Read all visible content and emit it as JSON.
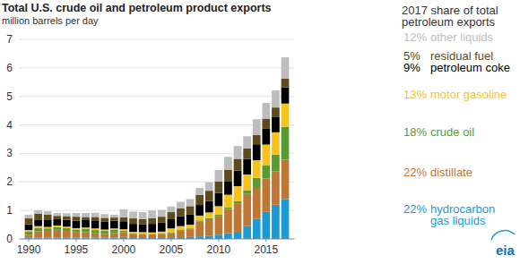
{
  "chart_data": {
    "type": "bar",
    "stacked": true,
    "grid": true,
    "title": "Total U.S. crude oil and petroleum product exports",
    "subtitle": "million barrels per day",
    "legend_title": "2017 share of total petroleum exports",
    "logo": "eia",
    "x": [
      1990,
      1991,
      1992,
      1993,
      1994,
      1995,
      1996,
      1997,
      1998,
      1999,
      2000,
      2001,
      2002,
      2003,
      2004,
      2005,
      2006,
      2007,
      2008,
      2009,
      2010,
      2011,
      2012,
      2013,
      2014,
      2015,
      2016,
      2017
    ],
    "xlim": [
      1989,
      2018
    ],
    "xticks": [
      1990,
      1995,
      2000,
      2005,
      2010,
      2015
    ],
    "ylim": [
      0,
      7
    ],
    "yticks": [
      0,
      1,
      2,
      3,
      4,
      5,
      6,
      7
    ],
    "series": [
      {
        "name": "hydrocarbon gas liquids",
        "share": "22%",
        "color": "#1c9ad6",
        "values": [
          0.04,
          0.05,
          0.05,
          0.05,
          0.05,
          0.05,
          0.05,
          0.05,
          0.05,
          0.05,
          0.07,
          0.06,
          0.06,
          0.06,
          0.06,
          0.06,
          0.06,
          0.07,
          0.09,
          0.1,
          0.15,
          0.2,
          0.25,
          0.45,
          0.7,
          0.95,
          1.2,
          1.4
        ]
      },
      {
        "name": "distillate",
        "share": "22%",
        "color": "#bf7632",
        "values": [
          0.11,
          0.22,
          0.23,
          0.27,
          0.23,
          0.18,
          0.19,
          0.15,
          0.12,
          0.16,
          0.17,
          0.12,
          0.11,
          0.11,
          0.11,
          0.14,
          0.22,
          0.27,
          0.53,
          0.59,
          0.66,
          0.85,
          1.0,
          1.13,
          1.09,
          1.17,
          1.17,
          1.38
        ]
      },
      {
        "name": "crude oil",
        "share": "18%",
        "color": "#5a9a32",
        "values": [
          0.11,
          0.12,
          0.09,
          0.1,
          0.1,
          0.1,
          0.11,
          0.11,
          0.11,
          0.12,
          0.05,
          0.02,
          0.01,
          0.01,
          0.03,
          0.03,
          0.03,
          0.03,
          0.03,
          0.04,
          0.04,
          0.05,
          0.07,
          0.13,
          0.35,
          0.47,
          0.59,
          1.15
        ]
      },
      {
        "name": "motor gasoline",
        "share": "13%",
        "color": "#f7c31b",
        "values": [
          0.05,
          0.06,
          0.05,
          0.05,
          0.05,
          0.05,
          0.05,
          0.06,
          0.05,
          0.04,
          0.05,
          0.05,
          0.06,
          0.05,
          0.06,
          0.14,
          0.14,
          0.13,
          0.17,
          0.2,
          0.3,
          0.45,
          0.53,
          0.55,
          0.62,
          0.72,
          0.78,
          0.82
        ]
      },
      {
        "name": "petroleum coke",
        "share": "9%",
        "color": "#000000",
        "values": [
          0.2,
          0.23,
          0.24,
          0.22,
          0.24,
          0.26,
          0.26,
          0.28,
          0.27,
          0.27,
          0.28,
          0.28,
          0.28,
          0.3,
          0.31,
          0.32,
          0.34,
          0.35,
          0.37,
          0.4,
          0.46,
          0.48,
          0.55,
          0.55,
          0.56,
          0.57,
          0.55,
          0.57
        ]
      },
      {
        "name": "residual fuel",
        "share": "5%",
        "color": "#5e4a1a",
        "values": [
          0.21,
          0.21,
          0.2,
          0.12,
          0.13,
          0.14,
          0.11,
          0.12,
          0.14,
          0.11,
          0.14,
          0.19,
          0.18,
          0.2,
          0.21,
          0.25,
          0.28,
          0.3,
          0.35,
          0.36,
          0.41,
          0.4,
          0.41,
          0.37,
          0.33,
          0.34,
          0.32,
          0.3
        ]
      },
      {
        "name": "other liquids",
        "share": "12%",
        "color": "#bdbdbd",
        "values": [
          0.13,
          0.12,
          0.11,
          0.1,
          0.1,
          0.13,
          0.14,
          0.15,
          0.13,
          0.1,
          0.28,
          0.24,
          0.24,
          0.27,
          0.24,
          0.2,
          0.23,
          0.25,
          0.25,
          0.3,
          0.4,
          0.45,
          0.45,
          0.42,
          0.55,
          0.55,
          0.6,
          0.75
        ]
      }
    ]
  }
}
